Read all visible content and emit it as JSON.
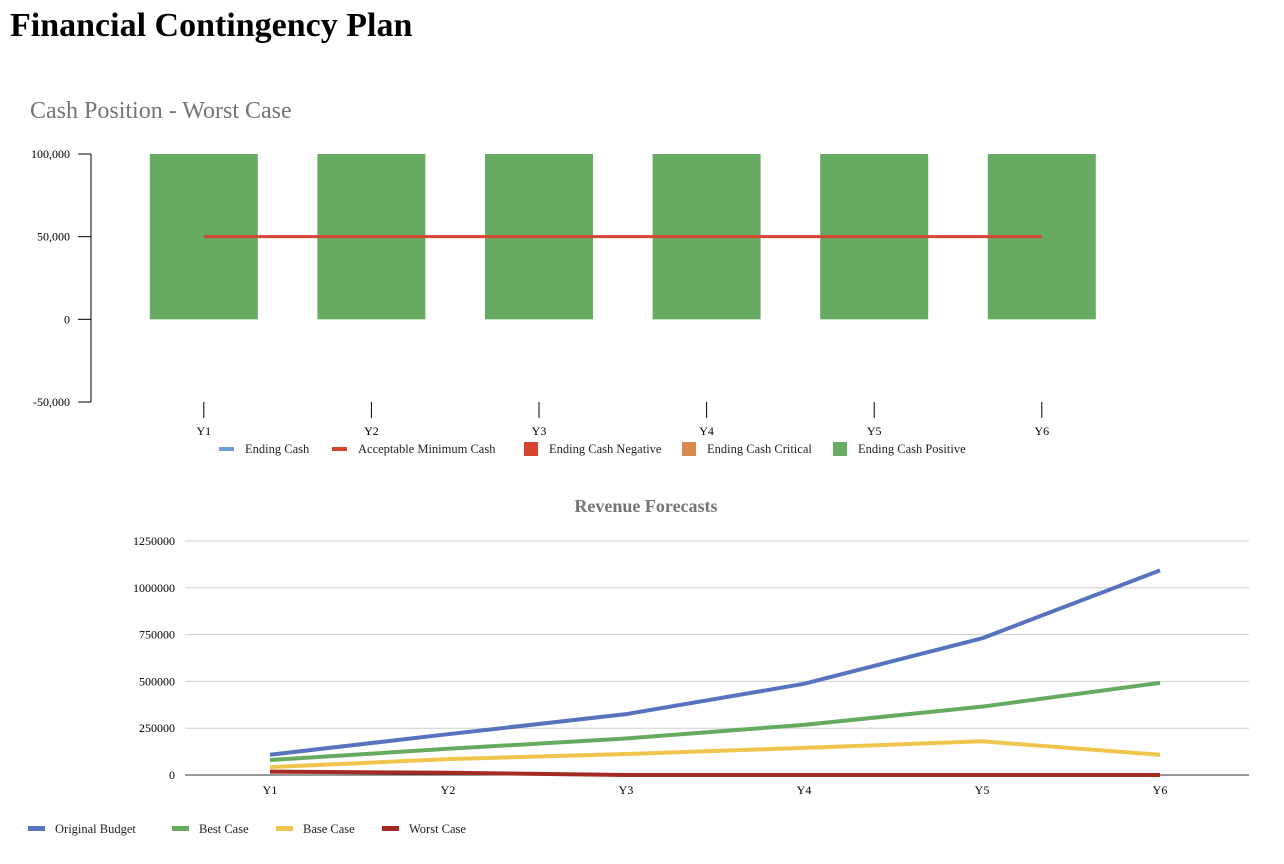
{
  "page": {
    "title": "Financial Contingency Plan"
  },
  "chart_data": [
    {
      "type": "bar",
      "title": "Cash Position - Worst Case",
      "categories": [
        "Y1",
        "Y2",
        "Y3",
        "Y4",
        "Y5",
        "Y6"
      ],
      "ylim": [
        -50000,
        100000
      ],
      "yticks": [
        100000,
        50000,
        0,
        -50000
      ],
      "ytick_labels": [
        "100,000",
        "50,000",
        "0",
        "-50,000"
      ],
      "grid": false,
      "legend_position": "bottom",
      "legend": [
        {
          "name": "Ending Cash",
          "color": "#6f9bd1",
          "shape": "line"
        },
        {
          "name": "Acceptable Minimum  Cash",
          "color": "#d64532",
          "shape": "line"
        },
        {
          "name": "Ending Cash Negative",
          "color": "#d64532",
          "shape": "box"
        },
        {
          "name": "Ending Cash Critical",
          "color": "#d98a50",
          "shape": "box"
        },
        {
          "name": "Ending Cash Positive",
          "color": "#67ab63",
          "shape": "box"
        }
      ],
      "series": [
        {
          "name": "Ending Cash Positive",
          "kind": "bar",
          "color": "#67ab63",
          "values": [
            100000,
            100000,
            100000,
            100000,
            100000,
            100000
          ]
        },
        {
          "name": "Acceptable Minimum  Cash",
          "kind": "line",
          "color": "#d64532",
          "values": [
            50000,
            50000,
            50000,
            50000,
            50000,
            50000
          ]
        }
      ]
    },
    {
      "type": "line",
      "title": "Revenue Forecasts",
      "categories": [
        "Y1",
        "Y2",
        "Y3",
        "Y4",
        "Y5",
        "Y6"
      ],
      "ylim": [
        0,
        1250000
      ],
      "yticks": [
        0,
        250000,
        500000,
        750000,
        1000000,
        1250000
      ],
      "ytick_labels": [
        "0",
        "250000",
        "500000",
        "750000",
        "1000000",
        "1250000"
      ],
      "grid": true,
      "legend_position": "bottom-left",
      "series": [
        {
          "name": "Original Budget",
          "color": "#5873be",
          "values": [
            108000,
            218000,
            325000,
            487000,
            730000,
            1093000
          ]
        },
        {
          "name": "Best Case",
          "color": "#66aa60",
          "values": [
            80000,
            140000,
            195000,
            268000,
            365000,
            492000
          ]
        },
        {
          "name": "Base Case",
          "color": "#f0c54e",
          "values": [
            42000,
            85000,
            112000,
            145000,
            180000,
            108000
          ]
        },
        {
          "name": "Worst Case",
          "color": "#a52a22",
          "values": [
            18000,
            12000,
            0,
            0,
            0,
            0
          ]
        }
      ]
    }
  ]
}
